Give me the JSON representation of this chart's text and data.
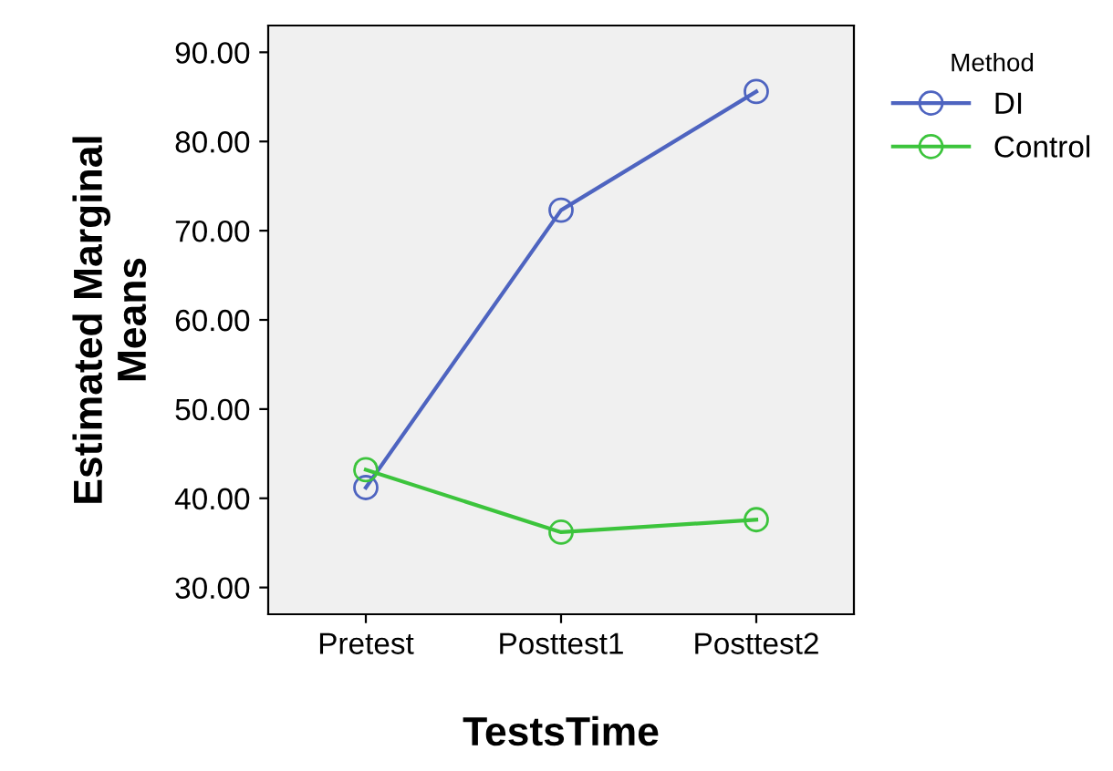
{
  "chart_data": {
    "type": "line",
    "xlabel": "TestsTime",
    "ylabel": "Estimated Marginal\nMeans",
    "legend_title": "Method",
    "legend": "right",
    "marker": "circle",
    "line_style": "solid",
    "grid": false,
    "categories": [
      "Pretest",
      "Posttest1",
      "Posttest2"
    ],
    "series": [
      {
        "name": "DI",
        "color": "#4e64c0",
        "values": [
          41.2,
          72.3,
          85.6
        ]
      },
      {
        "name": "Control",
        "color": "#3cc43c",
        "values": [
          43.2,
          36.2,
          37.6
        ]
      }
    ],
    "ylim": [
      27,
      93
    ],
    "yticks": [
      {
        "value": 30,
        "label": "30.00"
      },
      {
        "value": 40,
        "label": "40.00"
      },
      {
        "value": 50,
        "label": "50.00"
      },
      {
        "value": 60,
        "label": "60.00"
      },
      {
        "value": 70,
        "label": "70.00"
      },
      {
        "value": 80,
        "label": "80.00"
      },
      {
        "value": 90,
        "label": "90.00"
      }
    ]
  }
}
